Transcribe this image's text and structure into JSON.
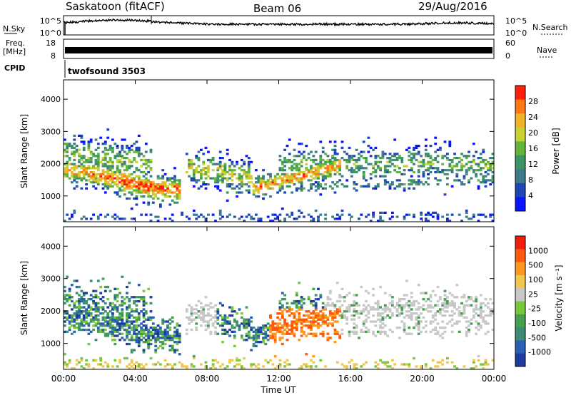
{
  "header": {
    "station": "Saskatoon (fitACF)",
    "beam": "Beam 06",
    "date": "29/Aug/2016"
  },
  "summary_panels": {
    "nsky_label": "N.Sky",
    "nsky_ticks": [
      "10^5",
      "10^0"
    ],
    "nsearch_label": "N.Search",
    "nsearch_ticks": [
      "10^5",
      "10^0"
    ],
    "freq_label_1": "Freq.",
    "freq_label_2": "[MHz]",
    "freq_ticks": [
      "18",
      "8"
    ],
    "nave_label": "Nave",
    "nave_ticks": [
      "60",
      "0"
    ],
    "cpid_label": "CPID",
    "cpid_value": "twofsound 3503"
  },
  "chart_data": [
    {
      "type": "heatmap",
      "name": "power",
      "ylabel": "Slant Range [km]",
      "ylim": [
        200,
        4600
      ],
      "y_ticks": [
        "4000",
        "3000",
        "2000",
        "1000"
      ],
      "x_ticks": [
        "00:00",
        "04:00",
        "08:00",
        "12:00",
        "16:00",
        "20:00",
        "00:00"
      ],
      "xlim_hours": [
        0,
        24
      ],
      "colorbar_label": "Power [dB]",
      "colorbar_ticks": [
        "28",
        "24",
        "20",
        "16",
        "12",
        "8",
        "4"
      ],
      "colors": [
        "#0a14ff",
        "#1e46b4",
        "#3c7a8c",
        "#3c9664",
        "#64b43c",
        "#c8d232",
        "#f0b428",
        "#ff7814",
        "#ff1e0a"
      ]
    },
    {
      "type": "heatmap",
      "name": "velocity",
      "ylabel": "Slant Range [km]",
      "ylim": [
        200,
        4600
      ],
      "y_ticks": [
        "4000",
        "3000",
        "2000",
        "1000"
      ],
      "x_ticks": [
        "00:00",
        "04:00",
        "08:00",
        "12:00",
        "16:00",
        "20:00",
        "00:00"
      ],
      "xlim_hours": [
        0,
        24
      ],
      "xlabel": "Time UT",
      "colorbar_label": "Velocity [m s⁻¹]",
      "colorbar_ticks": [
        "1000",
        "500",
        "100",
        "25",
        "-25",
        "-100",
        "-500",
        "-1000"
      ],
      "colors": [
        "#1e3ca0",
        "#2860b4",
        "#3c8c78",
        "#46a050",
        "#78c83c",
        "#c8c8c8",
        "#f0c850",
        "#ff961e",
        "#ff5a0a",
        "#f01e0a"
      ]
    }
  ]
}
